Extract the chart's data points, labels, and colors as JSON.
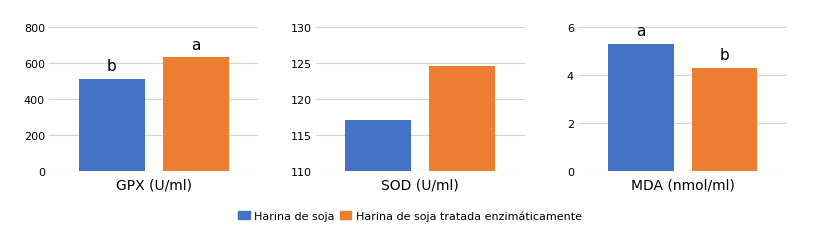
{
  "charts": [
    {
      "title": "GPX (U/ml)",
      "blue_val": 510,
      "orange_val": 630,
      "ylim": [
        0,
        800
      ],
      "yticks": [
        0,
        200,
        400,
        600,
        800
      ],
      "blue_label": "b",
      "orange_label": "a"
    },
    {
      "title": "SOD (U/ml)",
      "blue_val": 117,
      "orange_val": 124.5,
      "ylim": [
        110,
        130
      ],
      "yticks": [
        110,
        115,
        120,
        125,
        130
      ],
      "blue_label": "",
      "orange_label": ""
    },
    {
      "title": "MDA (nmol/ml)",
      "blue_val": 5.3,
      "orange_val": 4.3,
      "ylim": [
        0,
        6
      ],
      "yticks": [
        0,
        2,
        4,
        6
      ],
      "blue_label": "a",
      "orange_label": "b"
    }
  ],
  "blue_color": "#4472C4",
  "orange_color": "#ED7D31",
  "legend_blue": "Harina de soja",
  "legend_orange": "Harina de soja tratada enzimáticamente",
  "background_color": "#ffffff",
  "grid_color": "#d3d3d3",
  "tick_fontsize": 8,
  "title_fontsize": 10,
  "annot_fontsize": 11,
  "legend_fontsize": 8
}
